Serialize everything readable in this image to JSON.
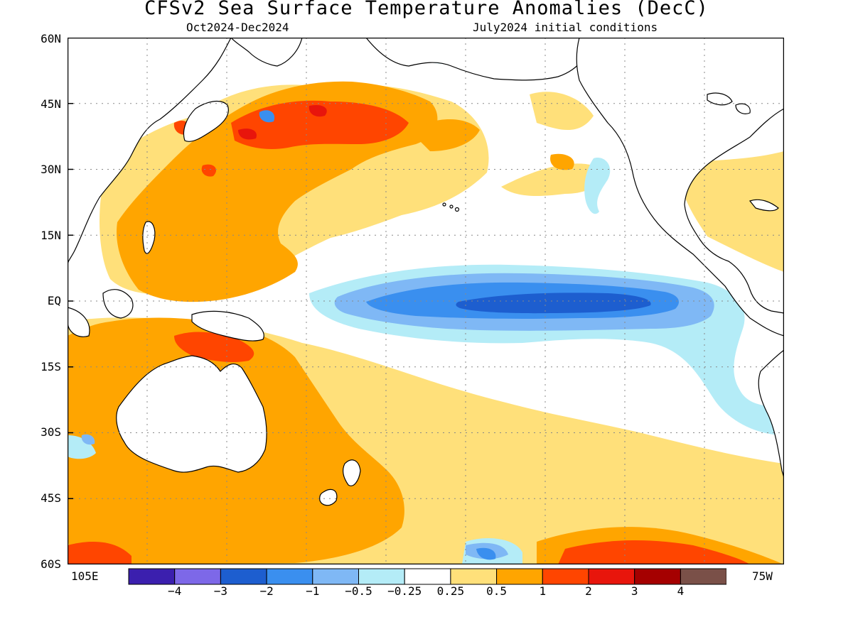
{
  "title": "CFSv2 Sea Surface Temperature Anomalies (DecC)",
  "subtitle_left": "Oct2024-Dec2024",
  "subtitle_right": "July2024 initial conditions",
  "lat_labels": [
    "60N",
    "45N",
    "30N",
    "15N",
    "EQ",
    "15S",
    "30S",
    "45S",
    "60S"
  ],
  "lon_labels": {
    "left": "105E",
    "right": "75W"
  },
  "colorbar": {
    "colors": [
      "#3b1fae",
      "#7d68e8",
      "#1d5ecf",
      "#3a8fef",
      "#7fb8f5",
      "#b4ecf7",
      "#ffffff",
      "#ffe07a",
      "#ffa500",
      "#ff4500",
      "#e8150c",
      "#a50000",
      "#7a5048"
    ],
    "labels": [
      "-4",
      "-3",
      "-2",
      "-1",
      "-0.5",
      "-0.25",
      "0.25",
      "0.5",
      "1",
      "2",
      "3",
      "4"
    ]
  },
  "colors": {
    "land_outline": "#000000",
    "grid": "#777777"
  }
}
